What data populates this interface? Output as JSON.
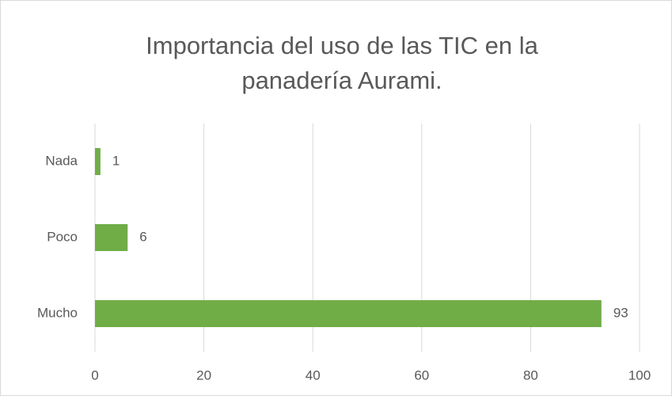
{
  "chart_data": {
    "type": "bar",
    "orientation": "horizontal",
    "title": [
      "Importancia del uso de las TIC en la",
      "panadería Aurami."
    ],
    "categories": [
      "Nada",
      "Poco",
      "Mucho"
    ],
    "values": [
      1,
      6,
      93
    ],
    "color": "#70ad47",
    "xlim": [
      0,
      100
    ],
    "xticks": [
      0,
      20,
      40,
      60,
      80,
      100
    ],
    "grid": true
  }
}
